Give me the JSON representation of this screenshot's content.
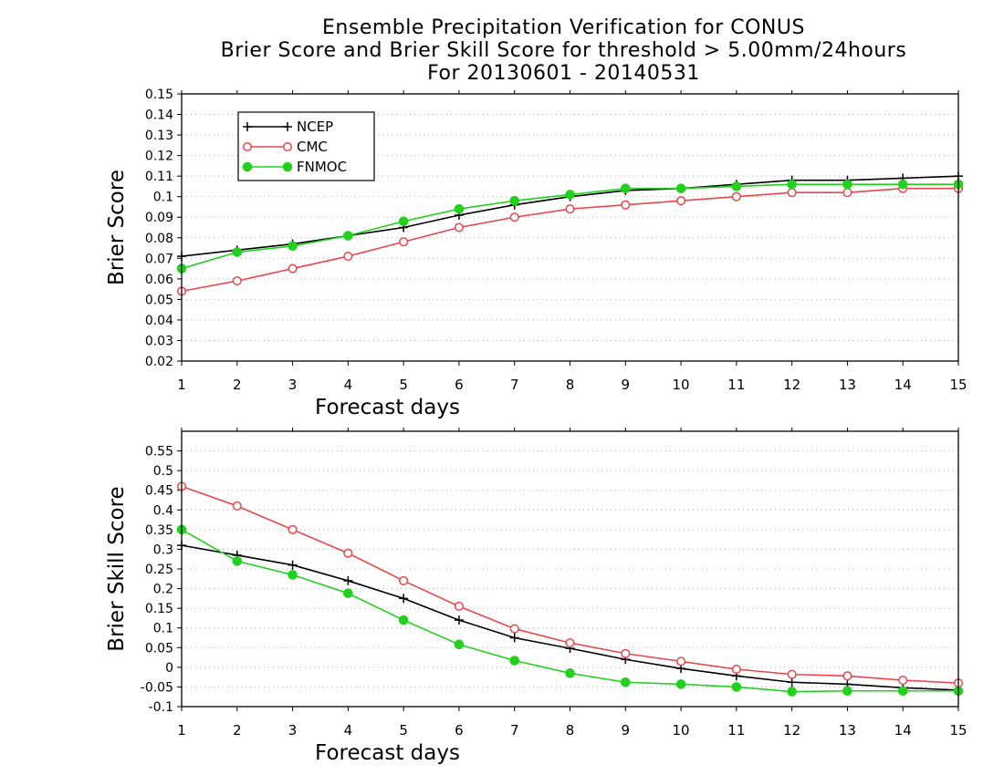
{
  "title_lines": [
    "Ensemble Precipitation Verification for CONUS",
    "Brier Score and Brier Skill Score for threshold > 5.00mm/24hours",
    "For 20130601 - 20140531"
  ],
  "colors": {
    "NCEP": "#000000",
    "CMC": "#e8474c",
    "FNMOC": "#22d11e",
    "grid": "#b0b0b0"
  },
  "chart_data": [
    {
      "type": "line",
      "ylabel": "Brier Score",
      "xlabel": "Forecast days",
      "x": [
        1,
        2,
        3,
        4,
        5,
        6,
        7,
        8,
        9,
        10,
        11,
        12,
        13,
        14,
        15
      ],
      "xlim": [
        1,
        15
      ],
      "ylim": [
        0.02,
        0.15
      ],
      "yticks": [
        0.02,
        0.03,
        0.04,
        0.05,
        0.06,
        0.07,
        0.08,
        0.09,
        0.1,
        0.11,
        0.12,
        0.13,
        0.14,
        0.15
      ],
      "ytick_labels": [
        "0.02",
        "0.03",
        "0.04",
        "0.05",
        "0.06",
        "0.07",
        "0.08",
        "0.09",
        "0.1",
        "0.11",
        "0.12",
        "0.13",
        "0.14",
        "0.15"
      ],
      "grid": "horizontal dotted",
      "legend": "top-left",
      "series": [
        {
          "name": "NCEP",
          "marker": "plus",
          "values": [
            0.071,
            0.074,
            0.077,
            0.081,
            0.085,
            0.091,
            0.096,
            0.1,
            0.103,
            0.104,
            0.106,
            0.108,
            0.108,
            0.109,
            0.11
          ]
        },
        {
          "name": "CMC",
          "marker": "open-circle",
          "values": [
            0.054,
            0.059,
            0.065,
            0.071,
            0.078,
            0.085,
            0.09,
            0.094,
            0.096,
            0.098,
            0.1,
            0.102,
            0.102,
            0.104,
            0.104
          ]
        },
        {
          "name": "FNMOC",
          "marker": "filled-circle",
          "values": [
            0.065,
            0.073,
            0.076,
            0.081,
            0.088,
            0.094,
            0.098,
            0.101,
            0.104,
            0.104,
            0.105,
            0.106,
            0.106,
            0.106,
            0.106
          ]
        }
      ]
    },
    {
      "type": "line",
      "ylabel": "Brier Skill Score",
      "xlabel": "Forecast days",
      "x": [
        1,
        2,
        3,
        4,
        5,
        6,
        7,
        8,
        9,
        10,
        11,
        12,
        13,
        14,
        15
      ],
      "xlim": [
        1,
        15
      ],
      "ylim": [
        -0.1,
        0.6
      ],
      "yticks": [
        -0.1,
        -0.05,
        0,
        0.05,
        0.1,
        0.15,
        0.2,
        0.25,
        0.3,
        0.35,
        0.4,
        0.45,
        0.5,
        0.55
      ],
      "ytick_labels": [
        "-0.1",
        "-0.05",
        "0",
        "0.05",
        "0.1",
        "0.15",
        "0.2",
        "0.25",
        "0.3",
        "0.35",
        "0.4",
        "0.45",
        "0.5",
        "0.55"
      ],
      "grid": "horizontal dotted",
      "series": [
        {
          "name": "NCEP",
          "marker": "plus",
          "values": [
            0.31,
            0.285,
            0.26,
            0.22,
            0.175,
            0.12,
            0.075,
            0.048,
            0.02,
            -0.003,
            -0.022,
            -0.038,
            -0.043,
            -0.052,
            -0.058
          ]
        },
        {
          "name": "CMC",
          "marker": "open-circle",
          "values": [
            0.46,
            0.41,
            0.35,
            0.29,
            0.22,
            0.155,
            0.098,
            0.062,
            0.035,
            0.015,
            -0.005,
            -0.018,
            -0.022,
            -0.033,
            -0.04
          ]
        },
        {
          "name": "FNMOC",
          "marker": "filled-circle",
          "values": [
            0.35,
            0.27,
            0.235,
            0.188,
            0.12,
            0.058,
            0.017,
            -0.015,
            -0.038,
            -0.043,
            -0.05,
            -0.062,
            -0.06,
            -0.06,
            -0.06
          ]
        }
      ]
    }
  ]
}
